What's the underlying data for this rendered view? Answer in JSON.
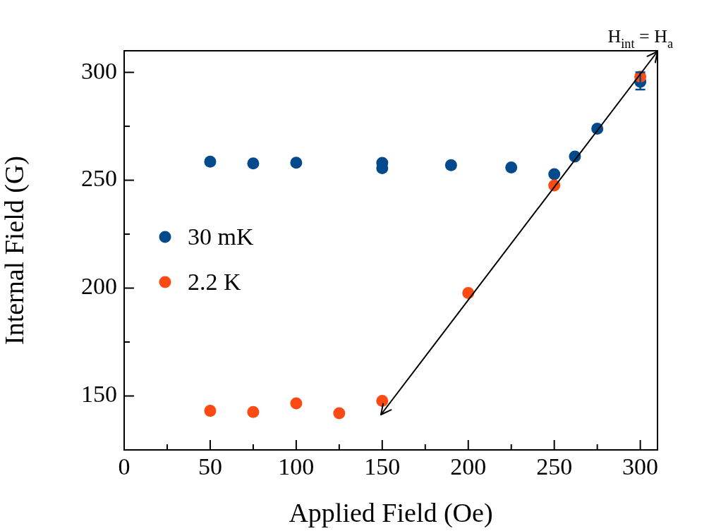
{
  "chart_data": {
    "type": "scatter",
    "xlabel": "Applied Field (Oe)",
    "ylabel": "Internal Field (G)",
    "xlim": [
      0,
      310
    ],
    "ylim": [
      125,
      310
    ],
    "xticks": [
      0,
      {
        "value": 25,
        "label": null
      },
      50,
      {
        "value": 75,
        "label": null
      },
      100,
      {
        "value": 125,
        "label": null
      },
      150,
      {
        "value": 175,
        "label": null
      },
      200,
      {
        "value": 225,
        "label": null
      },
      250,
      {
        "value": 275,
        "label": null
      },
      300
    ],
    "yticks": [
      150,
      {
        "value": 175,
        "label": null
      },
      200,
      {
        "value": 225,
        "label": null
      },
      250,
      {
        "value": 275,
        "label": null
      },
      300
    ],
    "grid": false,
    "legend": "left",
    "marker": "circle",
    "annotations": [
      "H$_{int}$ = H$_{a}$"
    ],
    "series": [
      {
        "name": "30 mK",
        "color": "#034a8c",
        "x": [
          50,
          75,
          100,
          150,
          150,
          190,
          225,
          250,
          262,
          275,
          300
        ],
        "values": [
          258.6,
          257.8,
          258.1,
          258.0,
          255.6,
          257.0,
          255.9,
          252.8,
          261.0,
          273.9,
          295.6
        ],
        "errors": [
          null,
          null,
          null,
          null,
          null,
          null,
          null,
          null,
          null,
          null,
          [
            292,
            300
          ]
        ]
      },
      {
        "name": "2.2 K",
        "color": "#fc4a14",
        "x": [
          50,
          75,
          100,
          125,
          150,
          200,
          250,
          300
        ],
        "values": [
          143.1,
          142.6,
          146.6,
          142.0,
          147.7,
          197.7,
          247.6,
          298.0
        ]
      }
    ]
  }
}
